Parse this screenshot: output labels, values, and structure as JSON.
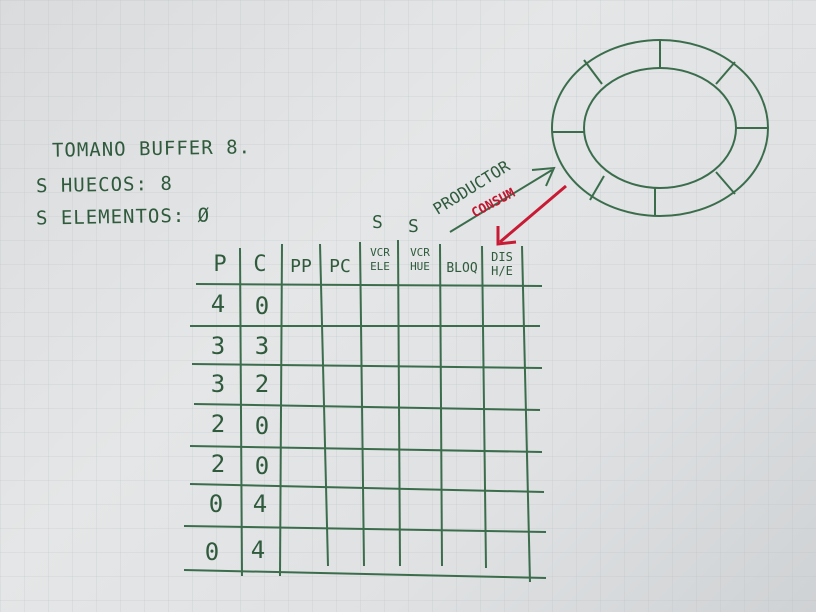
{
  "notes": {
    "line1": "TOMANO BUFFER 8.",
    "line2": "S HUECOS: 8",
    "line3": "S ELEMENTOS: Ø"
  },
  "diagram": {
    "s_left": "S",
    "s_right": "S",
    "producer_label": "PRODUCTOR",
    "consumer_label": "CONSUM"
  },
  "table": {
    "headers": [
      "P",
      "C",
      "PP",
      "PC",
      "VCR ELE",
      "VCR HUE",
      "BLOQ",
      "DIS H/E"
    ],
    "rows": [
      {
        "p": "4",
        "c": "0"
      },
      {
        "p": "3",
        "c": "3"
      },
      {
        "p": "3",
        "c": "2"
      },
      {
        "p": "2",
        "c": "0"
      },
      {
        "p": "2",
        "c": "0"
      },
      {
        "p": "0",
        "c": "4"
      },
      {
        "p": "0",
        "c": "4"
      }
    ]
  }
}
